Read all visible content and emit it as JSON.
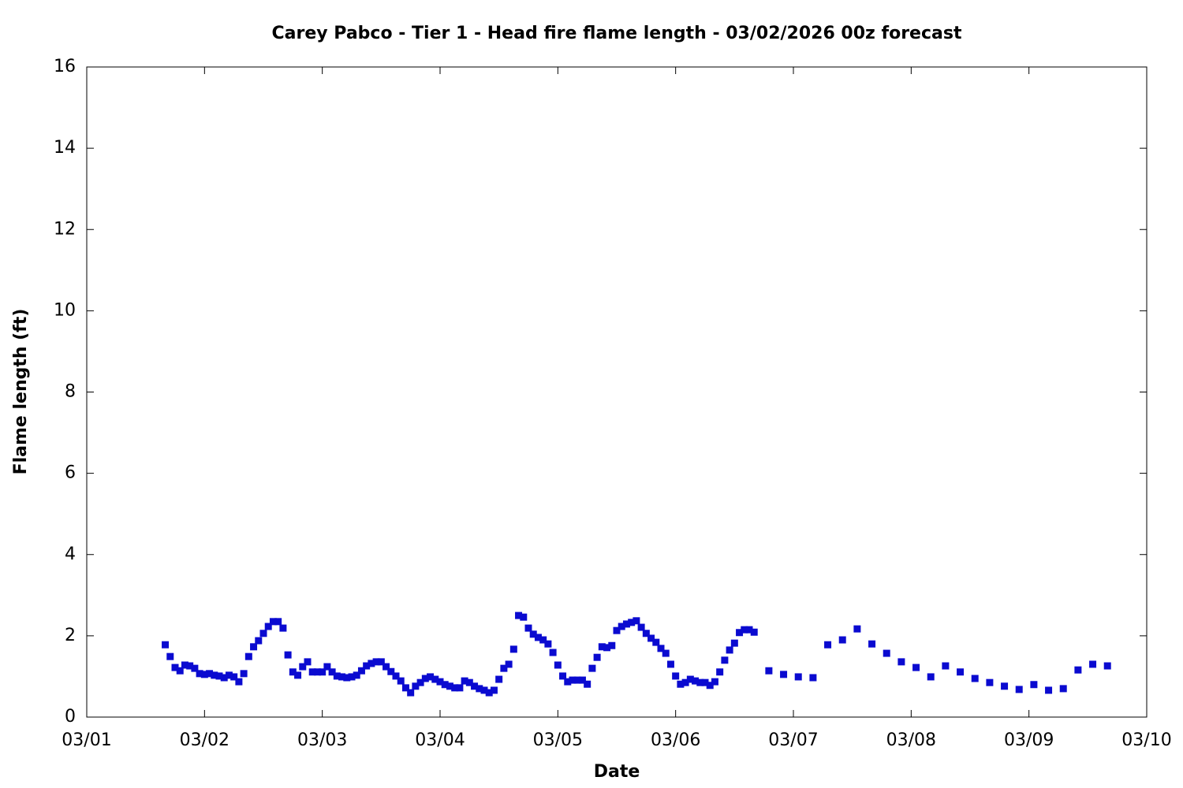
{
  "chart_data": {
    "type": "scatter",
    "title": "Carey Pabco - Tier 1 - Head fire flame length - 03/02/2026 00z forecast",
    "x_label": "Date",
    "y_label": "Flame length (ft)",
    "xlim": [
      0,
      216
    ],
    "xticks": [
      {
        "value": 0,
        "label": "03/01"
      },
      {
        "value": 24,
        "label": "03/02"
      },
      {
        "value": 48,
        "label": "03/03"
      },
      {
        "value": 72,
        "label": "03/04"
      },
      {
        "value": 96,
        "label": "03/05"
      },
      {
        "value": 120,
        "label": "03/06"
      },
      {
        "value": 144,
        "label": "03/07"
      },
      {
        "value": 168,
        "label": "03/08"
      },
      {
        "value": 192,
        "label": "03/09"
      },
      {
        "value": 216,
        "label": "03/10"
      }
    ],
    "ylim": [
      0,
      16
    ],
    "yticks": [
      0,
      2,
      4,
      6,
      8,
      10,
      12,
      14,
      16
    ],
    "color": "#0a0ad0",
    "x": [
      16,
      17,
      18,
      19,
      20,
      21,
      22,
      23,
      24,
      25,
      26,
      27,
      28,
      29,
      30,
      31,
      32,
      33,
      34,
      35,
      36,
      37,
      38,
      39,
      40,
      41,
      42,
      43,
      44,
      45,
      46,
      47,
      48,
      49,
      50,
      51,
      52,
      53,
      54,
      55,
      56,
      57,
      58,
      59,
      60,
      61,
      62,
      63,
      64,
      65,
      66,
      67,
      68,
      69,
      70,
      71,
      72,
      73,
      74,
      75,
      76,
      77,
      78,
      79,
      80,
      81,
      82,
      83,
      84,
      85,
      86,
      87,
      88,
      89,
      90,
      91,
      92,
      93,
      94,
      95,
      96,
      97,
      98,
      99,
      100,
      101,
      102,
      103,
      104,
      105,
      106,
      107,
      108,
      109,
      110,
      111,
      112,
      113,
      114,
      115,
      116,
      117,
      118,
      119,
      120,
      121,
      122,
      123,
      124,
      125,
      126,
      127,
      128,
      129,
      130,
      131,
      132,
      133,
      134,
      135,
      136,
      139,
      142,
      145,
      148,
      151,
      154,
      157,
      160,
      163,
      166,
      169,
      172,
      175,
      178,
      181,
      184,
      187,
      190,
      193,
      196,
      199,
      202,
      205,
      208
    ],
    "values": [
      1.78,
      1.49,
      1.22,
      1.14,
      1.28,
      1.26,
      1.2,
      1.07,
      1.05,
      1.07,
      1.03,
      1.01,
      0.97,
      1.03,
      0.99,
      0.87,
      1.07,
      1.49,
      1.73,
      1.88,
      2.06,
      2.23,
      2.35,
      2.35,
      2.19,
      1.53,
      1.11,
      1.03,
      1.24,
      1.36,
      1.11,
      1.11,
      1.11,
      1.24,
      1.11,
      1.01,
      0.99,
      0.97,
      0.99,
      1.03,
      1.14,
      1.26,
      1.32,
      1.36,
      1.36,
      1.24,
      1.12,
      1.01,
      0.89,
      0.72,
      0.6,
      0.76,
      0.85,
      0.95,
      0.99,
      0.93,
      0.87,
      0.8,
      0.76,
      0.72,
      0.72,
      0.89,
      0.85,
      0.76,
      0.7,
      0.66,
      0.6,
      0.66,
      0.93,
      1.2,
      1.3,
      1.67,
      2.5,
      2.46,
      2.19,
      2.04,
      1.96,
      1.9,
      1.8,
      1.59,
      1.28,
      1.01,
      0.87,
      0.91,
      0.91,
      0.91,
      0.81,
      1.2,
      1.47,
      1.73,
      1.71,
      1.76,
      2.13,
      2.23,
      2.29,
      2.33,
      2.37,
      2.21,
      2.06,
      1.94,
      1.84,
      1.69,
      1.57,
      1.3,
      1.01,
      0.81,
      0.85,
      0.93,
      0.89,
      0.85,
      0.85,
      0.78,
      0.87,
      1.11,
      1.4,
      1.65,
      1.82,
      2.08,
      2.15,
      2.15,
      2.09,
      1.14,
      1.05,
      0.99,
      0.97,
      1.78,
      1.9,
      2.17,
      1.8,
      1.57,
      1.36,
      1.22,
      0.99,
      1.26,
      1.11,
      0.95,
      0.85,
      0.76,
      0.68,
      0.8,
      0.66,
      0.7,
      1.16,
      1.3,
      1.26
    ]
  }
}
